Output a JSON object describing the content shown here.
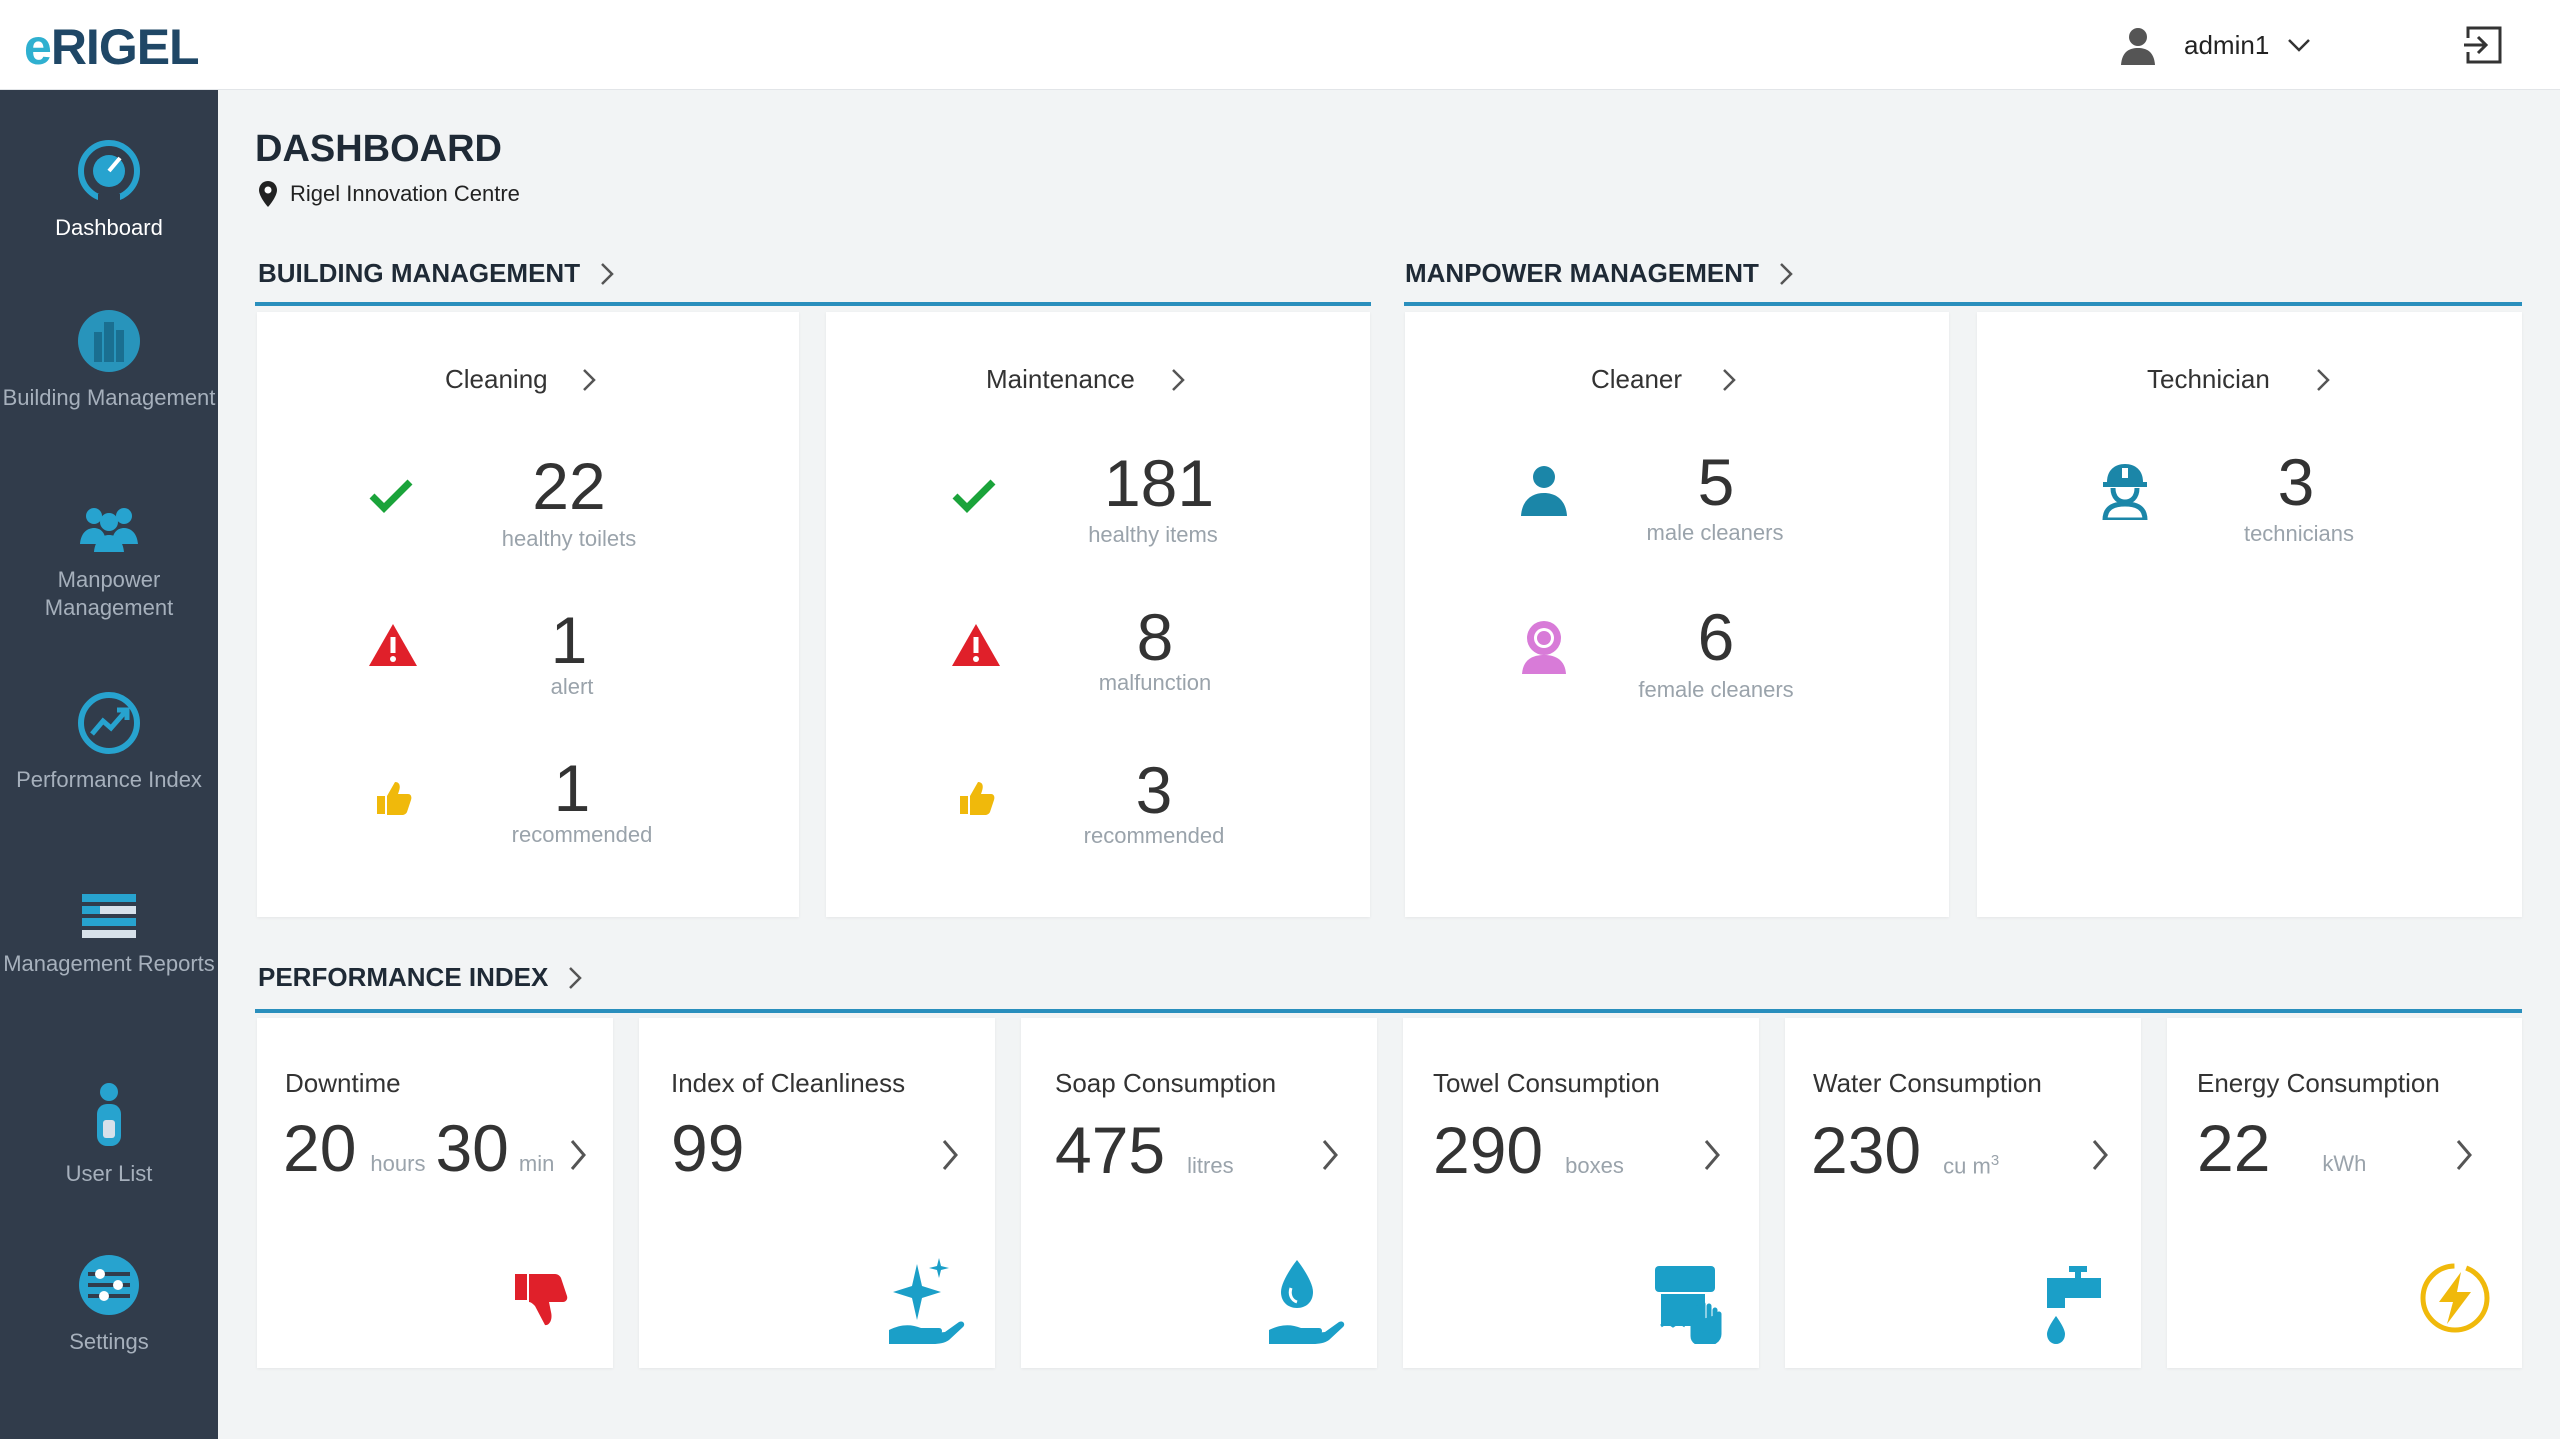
{
  "header": {
    "logo_prefix": "e",
    "logo_main": "RIGEL",
    "username": "admin1"
  },
  "sidebar": {
    "items": [
      {
        "label": "Dashboard",
        "icon": "speedometer-icon"
      },
      {
        "label": "Building Management",
        "icon": "building-icon"
      },
      {
        "label": "Manpower Management",
        "icon": "people-icon"
      },
      {
        "label": "Performance Index",
        "icon": "performance-chart-icon"
      },
      {
        "label": "Management Reports",
        "icon": "reports-icon"
      },
      {
        "label": "User List",
        "icon": "user-icon"
      },
      {
        "label": "Settings",
        "icon": "sliders-icon"
      }
    ]
  },
  "page": {
    "title": "DASHBOARD",
    "location": "Rigel Innovation Centre"
  },
  "sections": {
    "building": "BUILDING MANAGEMENT",
    "manpower": "MANPOWER MANAGEMENT",
    "performance": "PERFORMANCE INDEX"
  },
  "cleaning": {
    "title": "Cleaning",
    "rows": [
      {
        "value": "22",
        "label": "healthy toilets"
      },
      {
        "value": "1",
        "label": "alert"
      },
      {
        "value": "1",
        "label": "recommended"
      }
    ]
  },
  "maintenance": {
    "title": "Maintenance",
    "rows": [
      {
        "value": "181",
        "label": "healthy items"
      },
      {
        "value": "8",
        "label": "malfunction"
      },
      {
        "value": "3",
        "label": "recommended"
      }
    ]
  },
  "cleaner": {
    "title": "Cleaner",
    "rows": [
      {
        "value": "5",
        "label": "male cleaners"
      },
      {
        "value": "6",
        "label": "female cleaners"
      }
    ]
  },
  "technician": {
    "title": "Technician",
    "rows": [
      {
        "value": "3",
        "label": "technicians"
      }
    ]
  },
  "performance": {
    "downtime": {
      "title": "Downtime",
      "hours": "20",
      "hours_unit": "hours",
      "mins": "30",
      "mins_unit": "min"
    },
    "cleanliness": {
      "title": "Index of Cleanliness",
      "value": "99"
    },
    "soap": {
      "title": "Soap Consumption",
      "value": "475",
      "unit": "litres"
    },
    "towel": {
      "title": "Towel Consumption",
      "value": "290",
      "unit": "boxes"
    },
    "water": {
      "title": "Water Consumption",
      "value": "230",
      "unit": "cu m",
      "unit_sup": "3"
    },
    "energy": {
      "title": "Energy Consumption",
      "value": "22",
      "unit": "kWh"
    }
  },
  "colors": {
    "accent": "#2a8fbd",
    "sidebar": "#313c4b",
    "ok": "#1aa33a",
    "alert": "#e0202a",
    "recommend": "#f0b90b",
    "female": "#d87bd8"
  }
}
